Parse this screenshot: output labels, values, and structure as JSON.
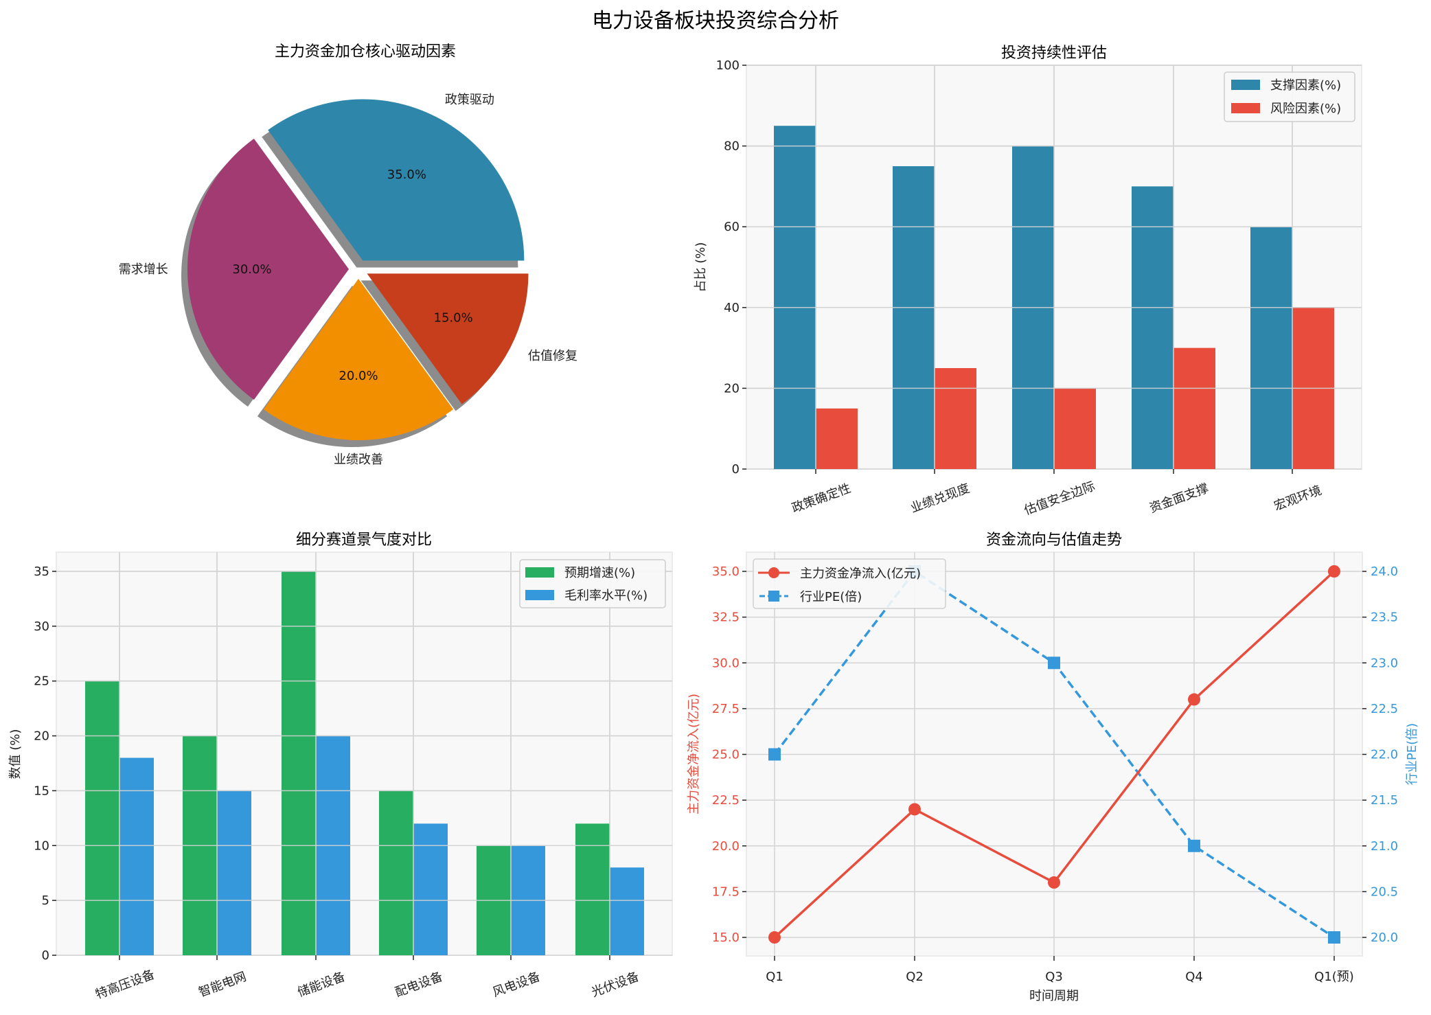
{
  "suptitle": "电力设备板块投资综合分析",
  "chart_data": [
    {
      "type": "pie",
      "title": "主力资金加仓核心驱动因素",
      "categories": [
        "政策驱动",
        "需求增长",
        "业绩改善",
        "估值修复"
      ],
      "values": [
        35.0,
        30.0,
        20.0,
        15.0
      ],
      "value_labels": [
        "35.0%",
        "30.0%",
        "20.0%",
        "15.0%"
      ],
      "colors": [
        "#2E86AB",
        "#A23B72",
        "#F18F01",
        "#C73E1D"
      ],
      "explode": true,
      "shadow": true
    },
    {
      "type": "bar",
      "title": "投资持续性评估",
      "categories": [
        "政策确定性",
        "业绩兑现度",
        "估值安全边际",
        "资金面支撑",
        "宏观环境"
      ],
      "series": [
        {
          "name": "支撑因素(%)",
          "values": [
            85,
            75,
            80,
            70,
            60
          ],
          "color": "#2E86AB"
        },
        {
          "name": "风险因素(%)",
          "values": [
            15,
            25,
            20,
            30,
            40
          ],
          "color": "#E74C3C"
        }
      ],
      "xlabel": "",
      "ylabel": "占比 (%)",
      "ylim": [
        0,
        100
      ],
      "yticks": [
        "0",
        "20",
        "40",
        "60",
        "80",
        "100"
      ],
      "legend_position": "upper right",
      "grid": true
    },
    {
      "type": "bar",
      "title": "细分赛道景气度对比",
      "categories": [
        "特高压设备",
        "智能电网",
        "储能设备",
        "配电设备",
        "风电设备",
        "光伏设备"
      ],
      "series": [
        {
          "name": "预期增速(%)",
          "values": [
            25,
            20,
            35,
            15,
            10,
            12
          ],
          "color": "#27AE60"
        },
        {
          "name": "毛利率水平(%)",
          "values": [
            18,
            15,
            20,
            12,
            10,
            8
          ],
          "color": "#3498DB"
        }
      ],
      "xlabel": "",
      "ylabel": "数值 (%)",
      "ylim": [
        0,
        36.75
      ],
      "yticks": [
        "0",
        "5",
        "10",
        "15",
        "20",
        "25",
        "30",
        "35"
      ],
      "legend_position": "upper right",
      "grid": true
    },
    {
      "type": "line",
      "title": "资金流向与估值走势",
      "categories": [
        "Q1",
        "Q2",
        "Q3",
        "Q4",
        "Q1(预)"
      ],
      "series": [
        {
          "name": "主力资金净流入(亿元)",
          "values": [
            15,
            22,
            18,
            28,
            35
          ],
          "color": "#E74C3C",
          "axis": "left",
          "marker": "circle",
          "linestyle": "solid"
        },
        {
          "name": "行业PE(倍)",
          "values": [
            22,
            24,
            23,
            21,
            20
          ],
          "color": "#3498DB",
          "axis": "right",
          "marker": "square",
          "linestyle": "dashed"
        }
      ],
      "xlabel": "时间周期",
      "ylabel": "主力资金净流入(亿元)",
      "ylabel_right": "行业PE(倍)",
      "ylim": [
        14,
        36
      ],
      "ylim_right": [
        19.8,
        24.2
      ],
      "yticks": [
        "15.0",
        "17.5",
        "20.0",
        "22.5",
        "25.0",
        "27.5",
        "30.0",
        "32.5",
        "35.0"
      ],
      "yticks_right": [
        "20.0",
        "20.5",
        "21.0",
        "21.5",
        "22.0",
        "22.5",
        "23.0",
        "23.5",
        "24.0"
      ],
      "legend_position": "upper left",
      "grid": true
    }
  ]
}
